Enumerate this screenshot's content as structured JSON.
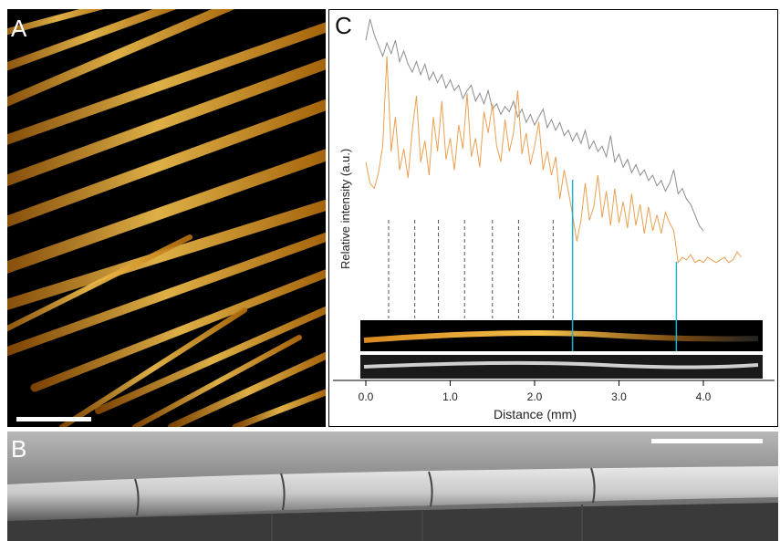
{
  "panels": {
    "a_label": "A",
    "b_label": "B",
    "c_label": "C"
  },
  "colors": {
    "fluorescence_gold": "#e8a33a",
    "fluorescence_profile": "#e9a050",
    "sem_profile": "#8c8c8c",
    "segment_marker": "#1fb2d0",
    "joint_marker": "#555555"
  },
  "chart_data": {
    "type": "line",
    "title": "",
    "xlabel": "Distance (mm)",
    "ylabel": "Relative intensity (a.u.)",
    "xlim": [
      -0.2,
      4.7
    ],
    "x_ticks": [
      "0.0",
      "1.0",
      "2.0",
      "3.0",
      "4.0"
    ],
    "grid": false,
    "series": [
      {
        "color": "#8c8c8c",
        "x": [
          0.0,
          0.05,
          0.1,
          0.15,
          0.2,
          0.25,
          0.3,
          0.35,
          0.4,
          0.45,
          0.5,
          0.55,
          0.6,
          0.65,
          0.7,
          0.75,
          0.8,
          0.85,
          0.9,
          0.95,
          1.0,
          1.05,
          1.1,
          1.15,
          1.2,
          1.25,
          1.3,
          1.35,
          1.4,
          1.45,
          1.5,
          1.55,
          1.6,
          1.65,
          1.7,
          1.75,
          1.8,
          1.85,
          1.9,
          1.95,
          2.0,
          2.05,
          2.1,
          2.15,
          2.2,
          2.25,
          2.3,
          2.35,
          2.4,
          2.45,
          2.5,
          2.55,
          2.6,
          2.65,
          2.7,
          2.75,
          2.8,
          2.85,
          2.9,
          2.95,
          3.0,
          3.05,
          3.1,
          3.15,
          3.2,
          3.25,
          3.3,
          3.35,
          3.4,
          3.45,
          3.5,
          3.55,
          3.6,
          3.65,
          3.7,
          3.75,
          3.8,
          3.85,
          3.9,
          3.95,
          4.0
        ],
        "y": [
          9.2,
          10.0,
          9.4,
          9.0,
          8.6,
          9.1,
          8.7,
          9.2,
          8.4,
          8.8,
          8.3,
          8.0,
          8.4,
          7.9,
          8.3,
          7.7,
          8.0,
          7.6,
          7.9,
          7.4,
          7.7,
          7.3,
          7.5,
          7.0,
          7.3,
          7.5,
          6.9,
          7.2,
          6.8,
          7.3,
          6.6,
          6.8,
          6.4,
          6.7,
          6.5,
          6.9,
          6.3,
          6.6,
          6.1,
          6.4,
          6.0,
          6.3,
          6.6,
          5.9,
          6.2,
          5.8,
          6.1,
          5.6,
          5.8,
          5.4,
          5.7,
          5.3,
          5.8,
          5.1,
          5.4,
          5.0,
          5.2,
          4.8,
          5.6,
          4.6,
          4.9,
          4.4,
          4.7,
          4.2,
          4.5,
          4.1,
          4.3,
          3.9,
          4.1,
          3.7,
          3.9,
          3.5,
          3.8,
          4.3,
          3.4,
          3.6,
          3.2,
          3.0,
          2.6,
          2.2,
          2.0
        ]
      },
      {
        "color": "#e9a050",
        "x": [
          0.0,
          0.05,
          0.1,
          0.15,
          0.2,
          0.25,
          0.3,
          0.35,
          0.4,
          0.45,
          0.5,
          0.55,
          0.6,
          0.65,
          0.7,
          0.75,
          0.8,
          0.85,
          0.9,
          0.95,
          1.0,
          1.05,
          1.1,
          1.15,
          1.2,
          1.25,
          1.3,
          1.35,
          1.4,
          1.45,
          1.5,
          1.55,
          1.6,
          1.65,
          1.7,
          1.75,
          1.8,
          1.85,
          1.9,
          1.95,
          2.0,
          2.05,
          2.1,
          2.15,
          2.2,
          2.25,
          2.3,
          2.35,
          2.4,
          2.45,
          2.5,
          2.55,
          2.6,
          2.65,
          2.7,
          2.75,
          2.8,
          2.85,
          2.9,
          2.95,
          3.0,
          3.05,
          3.1,
          3.15,
          3.2,
          3.25,
          3.3,
          3.35,
          3.4,
          3.45,
          3.5,
          3.55,
          3.6,
          3.65,
          3.7,
          3.75,
          3.8,
          3.85,
          3.9,
          3.95,
          4.0,
          4.05,
          4.1,
          4.15,
          4.2,
          4.25,
          4.3,
          4.35,
          4.4,
          4.45
        ],
        "y": [
          4.6,
          3.8,
          3.6,
          4.2,
          5.2,
          8.6,
          5.0,
          6.3,
          4.3,
          5.1,
          4.0,
          5.8,
          7.1,
          4.6,
          5.4,
          4.1,
          6.3,
          5.0,
          6.9,
          4.7,
          5.5,
          4.3,
          6.0,
          5.1,
          7.2,
          4.8,
          5.5,
          4.4,
          6.5,
          5.7,
          6.8,
          5.2,
          4.6,
          6.2,
          5.0,
          5.7,
          7.3,
          4.9,
          5.7,
          4.5,
          5.2,
          6.1,
          4.3,
          5.0,
          4.1,
          4.8,
          3.2,
          4.3,
          3.5,
          2.6,
          1.6,
          2.4,
          3.8,
          2.4,
          2.9,
          4.1,
          2.5,
          3.5,
          2.2,
          3.6,
          2.3,
          3.1,
          2.1,
          3.4,
          2.2,
          3.0,
          1.9,
          2.9,
          2.0,
          2.6,
          1.9,
          2.7,
          2.3,
          2.0,
          0.8,
          1.0,
          0.9,
          1.1,
          0.8,
          0.9,
          0.8,
          1.0,
          0.9,
          0.8,
          0.9,
          1.0,
          0.8,
          0.9,
          1.2,
          1.0
        ]
      }
    ],
    "joint_positions_mm": [
      0.27,
      0.58,
      0.86,
      1.17,
      1.5,
      1.81,
      2.22
    ],
    "segment_boundaries_mm": [
      2.45,
      3.68
    ]
  }
}
